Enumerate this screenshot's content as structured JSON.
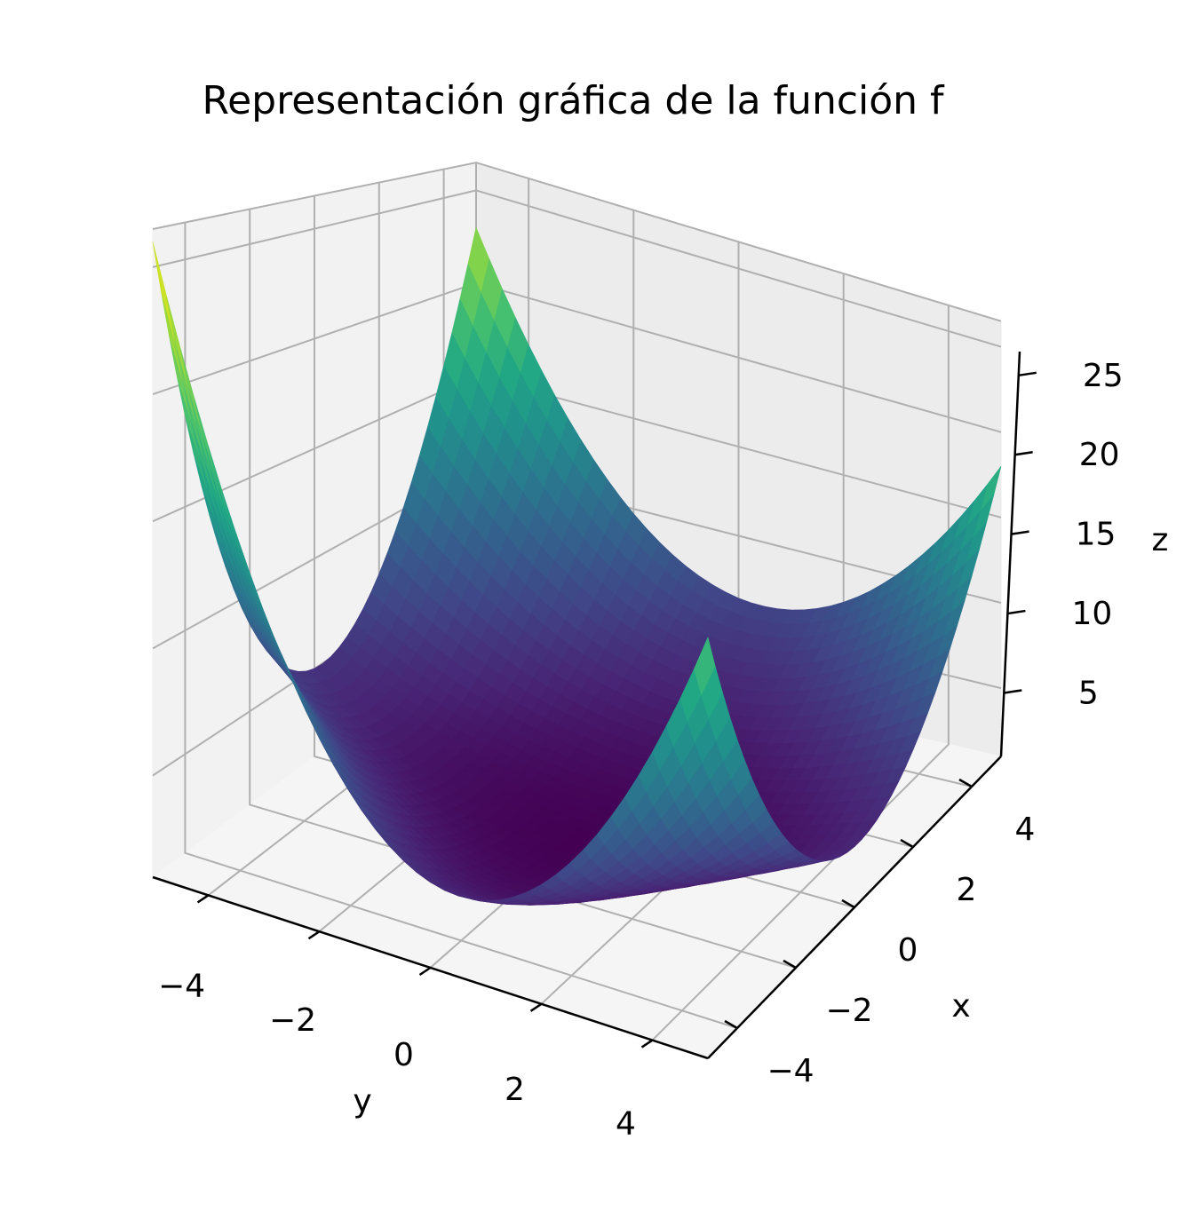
{
  "chart_data": {
    "type": "surface3d",
    "title": "Representación gráfica de la función f",
    "xlabel": "x",
    "ylabel": "y",
    "zlabel": "z",
    "x_range": [
      -5,
      5
    ],
    "y_range": [
      -5,
      5
    ],
    "z_range": [
      1,
      26.5
    ],
    "x_ticks": [
      {
        "value": -4,
        "label": "−4"
      },
      {
        "value": -2,
        "label": "−2"
      },
      {
        "value": 0,
        "label": "0"
      },
      {
        "value": 2,
        "label": "2"
      },
      {
        "value": 4,
        "label": "4"
      }
    ],
    "y_ticks": [
      {
        "value": -4,
        "label": "−4"
      },
      {
        "value": -2,
        "label": "−2"
      },
      {
        "value": 0,
        "label": "0"
      },
      {
        "value": 2,
        "label": "2"
      },
      {
        "value": 4,
        "label": "4"
      }
    ],
    "z_ticks": [
      {
        "value": 5,
        "label": "5"
      },
      {
        "value": 10,
        "label": "10"
      },
      {
        "value": 15,
        "label": "15"
      },
      {
        "value": 20,
        "label": "20"
      },
      {
        "value": 25,
        "label": "25"
      }
    ],
    "surface": {
      "colormap": "viridis",
      "x_samples": [
        -5,
        -3.75,
        -2.5,
        -1.25,
        0,
        1.25,
        2.5,
        3.75,
        5
      ],
      "y_samples": [
        -5,
        -3.75,
        -2.5,
        -1.25,
        0,
        1.25,
        2.5,
        3.75,
        5
      ],
      "z_corners": {
        "x-5_y-5": 26,
        "x-5_y5": 19,
        "x5_y-5": 23,
        "x5_y5": 18
      },
      "z_edge_midpoints": {
        "x-5_y0": 4.5,
        "x5_y0": 6.5,
        "x0_y-5": 5,
        "x0_y5": 4
      },
      "z_center": 1.5,
      "grid": true
    }
  }
}
